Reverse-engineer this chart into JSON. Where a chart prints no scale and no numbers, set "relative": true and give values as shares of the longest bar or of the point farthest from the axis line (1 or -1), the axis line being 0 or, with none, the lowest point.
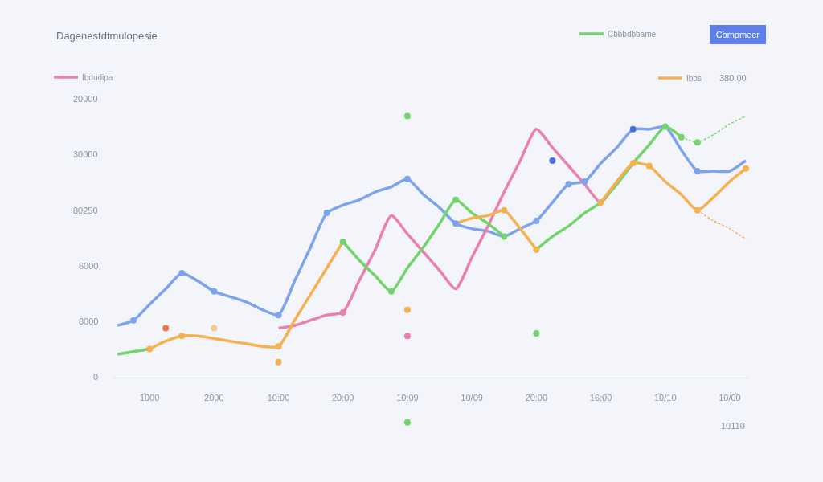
{
  "chart_data": {
    "type": "line",
    "title": "Dagenestdtmulopesie",
    "relative": true,
    "legend": "top",
    "categories": [
      null,
      null,
      "1000",
      null,
      null,
      null,
      "2000",
      null,
      null,
      null,
      "10:00",
      null,
      null,
      null,
      "20:00",
      null,
      null,
      null,
      "10:09",
      null,
      null,
      null,
      "10/09",
      null,
      null,
      null,
      "20:00",
      null,
      null,
      null,
      "16:00",
      null,
      null,
      null,
      "10/10",
      null,
      null,
      null,
      "10/00",
      null
    ],
    "series": [
      {
        "color": "#7ca4ec",
        "values": [
          0.2,
          0.22,
          0.28,
          0.34,
          0.4,
          0.37,
          0.33,
          0.31,
          0.29,
          0.26,
          0.24,
          0.37,
          0.5,
          0.63,
          0.66,
          0.68,
          0.71,
          0.73,
          0.76,
          0.7,
          0.65,
          0.59,
          0.57,
          0.56,
          0.54,
          0.57,
          0.6,
          0.67,
          0.74,
          0.75,
          0.82,
          0.88,
          0.95,
          0.95,
          0.96,
          0.87,
          0.79,
          0.79,
          0.79,
          0.83
        ]
      },
      {
        "name": "Ibdudipa",
        "color": "#ea7fb0",
        "values": [
          null,
          null,
          null,
          null,
          null,
          null,
          null,
          null,
          null,
          null,
          0.19,
          0.2,
          0.22,
          0.24,
          0.25,
          0.37,
          0.49,
          0.62,
          0.55,
          0.48,
          0.41,
          0.34,
          0.46,
          0.58,
          0.71,
          0.83,
          0.95,
          0.88,
          0.81,
          0.74,
          0.67,
          0.75,
          0.82,
          null,
          null,
          null,
          null,
          null,
          null,
          null
        ]
      },
      {
        "name": "Cbbbdbbame",
        "color": "#72d46a",
        "values": [
          0.09,
          0.1,
          0.11,
          null,
          null,
          null,
          null,
          null,
          null,
          null,
          null,
          null,
          null,
          null,
          0.52,
          0.45,
          0.39,
          0.33,
          0.42,
          0.5,
          0.59,
          0.68,
          0.63,
          0.59,
          0.54,
          null,
          0.49,
          0.54,
          0.58,
          0.63,
          0.67,
          0.74,
          0.82,
          0.89,
          0.96,
          0.92,
          null,
          null,
          null,
          null
        ]
      },
      {
        "color": "#72d46a",
        "line_style": "dashed",
        "values": [
          null,
          null,
          null,
          null,
          null,
          null,
          null,
          null,
          null,
          null,
          null,
          null,
          null,
          null,
          null,
          null,
          null,
          null,
          null,
          null,
          null,
          null,
          null,
          null,
          null,
          null,
          null,
          null,
          null,
          null,
          null,
          null,
          null,
          null,
          null,
          0.92,
          0.9,
          0.93,
          0.97,
          1.0
        ]
      },
      {
        "name": "Ibbs",
        "color": "#f5b04f",
        "values": [
          null,
          null,
          0.11,
          0.14,
          0.16,
          0.16,
          0.15,
          0.14,
          0.13,
          0.12,
          0.12,
          0.22,
          0.32,
          0.42,
          0.52,
          null,
          null,
          null,
          null,
          null,
          null,
          0.59,
          0.61,
          0.62,
          0.64,
          0.57,
          0.49,
          null,
          null,
          null,
          0.67,
          0.75,
          0.82,
          0.81,
          0.75,
          0.7,
          0.64,
          0.69,
          0.75,
          0.8
        ]
      },
      {
        "color": "#f5b04f",
        "line_style": "dashed",
        "values": [
          null,
          null,
          null,
          null,
          null,
          null,
          null,
          null,
          null,
          null,
          null,
          null,
          null,
          null,
          null,
          null,
          null,
          null,
          null,
          null,
          null,
          null,
          null,
          null,
          null,
          null,
          null,
          null,
          null,
          null,
          null,
          null,
          null,
          null,
          null,
          null,
          0.64,
          0.6,
          0.57,
          0.53
        ]
      },
      {
        "type": "scatter",
        "marker": "circle",
        "color": "#7ca4ec",
        "values": [
          null,
          0.22,
          null,
          null,
          0.4,
          null,
          0.33,
          null,
          null,
          null,
          0.24,
          null,
          null,
          0.63,
          null,
          null,
          null,
          null,
          0.76,
          null,
          null,
          0.59,
          null,
          null,
          null,
          null,
          0.6,
          null,
          0.74,
          0.75,
          null,
          null,
          null,
          null,
          null,
          null,
          0.79,
          null,
          null,
          null
        ]
      },
      {
        "type": "scatter",
        "marker": "circle",
        "color": "#4a6fe0",
        "values": [
          null,
          null,
          null,
          null,
          null,
          null,
          null,
          null,
          null,
          null,
          null,
          null,
          null,
          null,
          null,
          null,
          null,
          null,
          null,
          null,
          null,
          null,
          null,
          null,
          null,
          null,
          null,
          0.83,
          null,
          null,
          null,
          null,
          0.95,
          null,
          null,
          null,
          null,
          null,
          null,
          null
        ]
      },
      {
        "type": "scatter",
        "marker": "circle",
        "color": "#ea7fb0",
        "values": [
          null,
          null,
          null,
          null,
          null,
          null,
          null,
          null,
          null,
          null,
          null,
          null,
          null,
          null,
          0.25,
          null,
          null,
          null,
          0.16,
          null,
          null,
          null,
          null,
          null,
          null,
          null,
          null,
          null,
          null,
          null,
          null,
          null,
          null,
          null,
          null,
          null,
          null,
          null,
          null,
          null
        ]
      },
      {
        "type": "scatter",
        "marker": "circle",
        "color": "#72d46a",
        "values": [
          null,
          null,
          null,
          null,
          null,
          null,
          null,
          null,
          null,
          null,
          null,
          null,
          null,
          null,
          0.52,
          null,
          null,
          0.33,
          1.0,
          null,
          null,
          0.68,
          null,
          null,
          0.54,
          null,
          0.17,
          null,
          null,
          null,
          null,
          null,
          null,
          null,
          0.96,
          0.92,
          0.9,
          null,
          null,
          null
        ]
      },
      {
        "type": "scatter",
        "marker": "circle",
        "color": "#72d46a",
        "values": [
          null,
          null,
          null,
          null,
          null,
          null,
          null,
          null,
          null,
          null,
          null,
          null,
          null,
          null,
          null,
          null,
          null,
          null,
          -0.17,
          null,
          null,
          null,
          null,
          null,
          null,
          null,
          null,
          null,
          null,
          null,
          null,
          null,
          null,
          null,
          null,
          null,
          null,
          null,
          null,
          null
        ]
      },
      {
        "type": "scatter",
        "marker": "circle",
        "color": "#f5b04f",
        "values": [
          null,
          null,
          0.11,
          null,
          0.16,
          null,
          null,
          null,
          null,
          null,
          0.12,
          null,
          null,
          null,
          null,
          null,
          null,
          null,
          0.26,
          null,
          null,
          null,
          null,
          null,
          0.64,
          null,
          0.49,
          null,
          null,
          null,
          0.67,
          null,
          0.82,
          0.81,
          null,
          null,
          0.64,
          null,
          null,
          0.8
        ]
      },
      {
        "type": "scatter",
        "marker": "circle",
        "color": "#f5b04f",
        "values": [
          null,
          null,
          null,
          null,
          null,
          null,
          null,
          null,
          null,
          null,
          0.06,
          null,
          null,
          null,
          null,
          null,
          null,
          null,
          null,
          null,
          null,
          null,
          null,
          null,
          null,
          null,
          null,
          null,
          null,
          null,
          null,
          null,
          null,
          null,
          null,
          null,
          null,
          null,
          null,
          null
        ]
      },
      {
        "type": "scatter",
        "marker": "circle",
        "color": "#ee7a4a",
        "values": [
          null,
          null,
          null,
          0.19,
          null,
          null,
          null,
          null,
          null,
          null,
          null,
          null,
          null,
          null,
          null,
          null,
          null,
          null,
          null,
          null,
          null,
          null,
          null,
          null,
          null,
          null,
          null,
          null,
          null,
          null,
          null,
          null,
          null,
          null,
          null,
          null,
          null,
          null,
          null,
          null
        ]
      },
      {
        "type": "scatter",
        "marker": "circle",
        "color": "#f6c98e",
        "values": [
          null,
          null,
          null,
          null,
          null,
          null,
          0.19,
          null,
          null,
          null,
          null,
          null,
          null,
          null,
          null,
          null,
          null,
          null,
          null,
          null,
          null,
          null,
          null,
          null,
          null,
          null,
          null,
          null,
          null,
          null,
          null,
          null,
          null,
          null,
          null,
          null,
          null,
          null,
          null,
          null
        ]
      }
    ],
    "annotations": [
      "20000",
      "30000",
      "80250",
      "6000",
      "8000",
      "0",
      "380.00",
      "Cbmpmeer",
      "10110"
    ]
  }
}
